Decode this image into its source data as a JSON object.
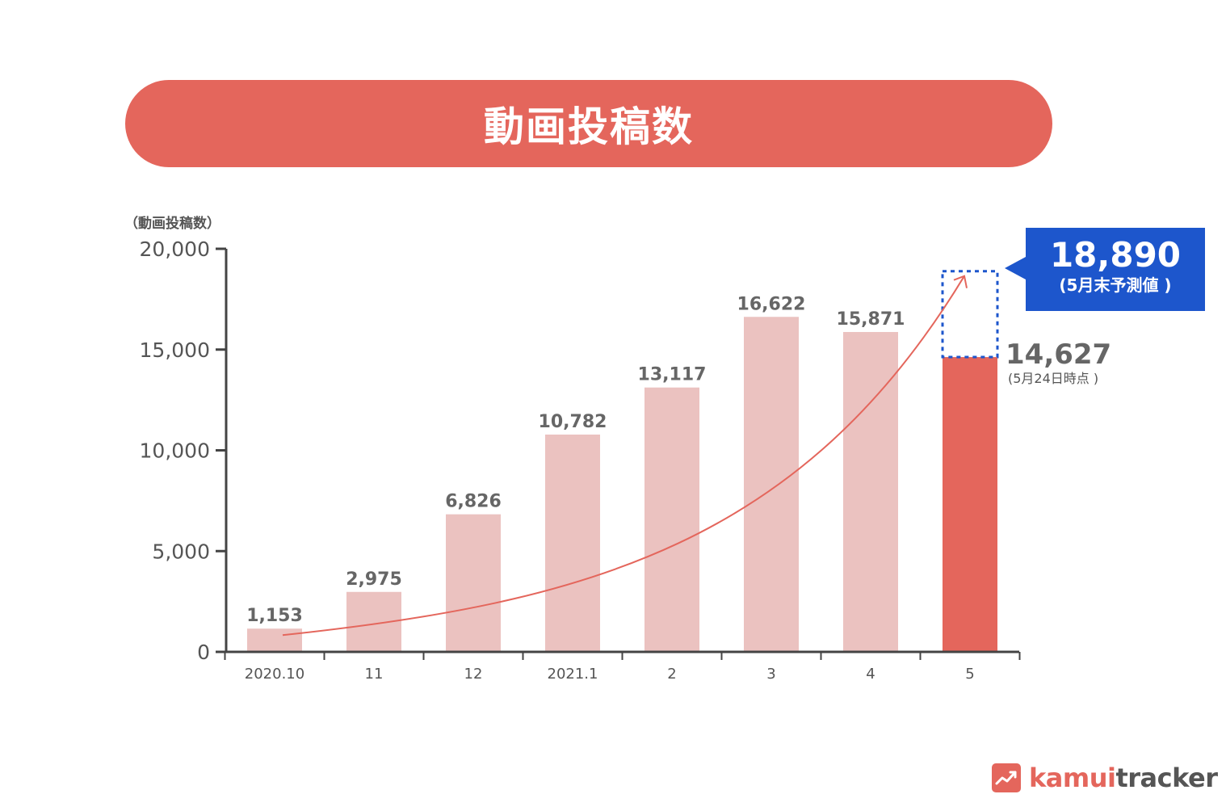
{
  "chart_data": {
    "type": "bar",
    "title": "動画投稿数",
    "ylabel": "（動画投稿数）",
    "xlabel": "",
    "ylim": [
      0,
      20000
    ],
    "yticks": [
      0,
      5000,
      10000,
      15000,
      20000
    ],
    "ytick_labels": [
      "0",
      "5,000",
      "10,000",
      "15,000",
      "20,000"
    ],
    "categories": [
      "2020.10",
      "11",
      "12",
      "2021.1",
      "2",
      "3",
      "4",
      "5"
    ],
    "values": [
      1153,
      2975,
      6826,
      10782,
      13117,
      16622,
      15871,
      14627
    ],
    "value_labels": [
      "1,153",
      "2,975",
      "6,826",
      "10,782",
      "13,117",
      "16,622",
      "15,871",
      ""
    ],
    "highlight_index": 7,
    "projection": {
      "value": 18890
    },
    "grid": false,
    "legend": "none"
  },
  "current": {
    "value_label": "14,627",
    "note": "(5月24日時点 )"
  },
  "forecast": {
    "value_label": "18,890",
    "note": "(5月末予測値 )"
  },
  "colors": {
    "bar": "#ebc2c0",
    "highlight_bar": "#e4665c",
    "title_bg": "#e4665c",
    "callout_bg": "#1d56cc",
    "trend_line": "#e4665c",
    "axis": "#444444"
  },
  "logo": {
    "part1": "kamui",
    "part2": "tracker",
    "icon": "trend-chart-icon"
  }
}
